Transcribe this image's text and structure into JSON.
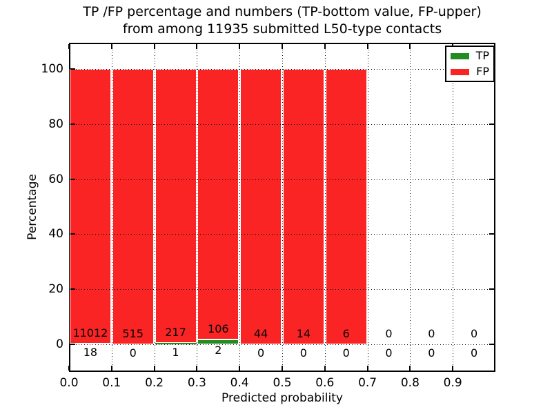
{
  "title": {
    "line1": "TP /FP percentage and numbers (TP-bottom value, FP-upper)",
    "line2": "from among 11935 submitted L50-type contacts"
  },
  "axes": {
    "xlabel": "Predicted probability",
    "ylabel": "Percentage",
    "x_ticks": [
      "0.0",
      "0.1",
      "0.2",
      "0.3",
      "0.4",
      "0.5",
      "0.6",
      "0.7",
      "0.8",
      "0.9"
    ],
    "y_ticks": [
      "0",
      "20",
      "40",
      "60",
      "80",
      "100"
    ]
  },
  "legend": {
    "items": [
      {
        "label": "TP",
        "color": "#228b22"
      },
      {
        "label": "FP",
        "color": "#fa2424"
      }
    ]
  },
  "chart_data": {
    "type": "bar",
    "stacked": true,
    "title": "TP /FP percentage and numbers (TP-bottom value, FP-upper) from among 11935 submitted L50-type contacts",
    "xlabel": "Predicted probability",
    "ylabel": "Percentage",
    "total_submitted": 11935,
    "bin_edges": [
      0.0,
      0.1,
      0.2,
      0.3,
      0.4,
      0.5,
      0.6,
      0.7,
      0.8,
      0.9,
      1.0
    ],
    "xlim": [
      0.0,
      1.0
    ],
    "ylim": [
      -10,
      109.6
    ],
    "grid": true,
    "grid_style": "dotted",
    "legend_position": "upper right",
    "series": [
      {
        "name": "TP",
        "color": "#228b22",
        "counts": [
          18,
          0,
          1,
          2,
          0,
          0,
          0,
          0,
          0,
          0
        ],
        "percent": [
          0.16,
          0.0,
          0.46,
          1.85,
          0.0,
          0.0,
          0.0,
          0.0,
          0.0,
          0.0
        ]
      },
      {
        "name": "FP",
        "color": "#fa2424",
        "counts": [
          11012,
          515,
          217,
          106,
          44,
          14,
          6,
          0,
          0,
          0
        ],
        "percent": [
          99.84,
          100.0,
          99.54,
          98.15,
          100.0,
          100.0,
          100.0,
          0.0,
          0.0,
          0.0
        ]
      }
    ]
  }
}
